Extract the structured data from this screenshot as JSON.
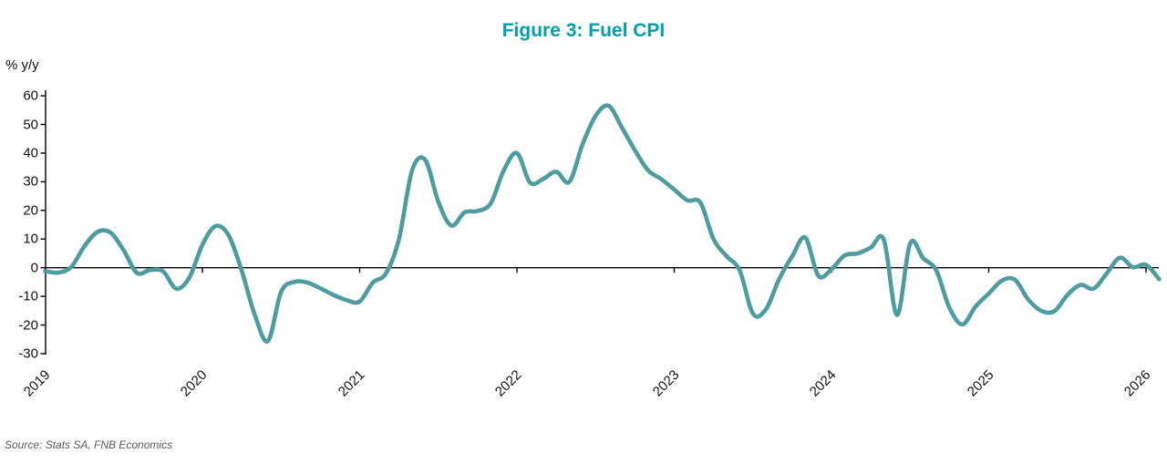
{
  "title": "Figure 3: Fuel CPI",
  "y_axis_unit": "% y/y",
  "source": "Source: Stats SA, FNB Economics",
  "colors": {
    "title": "#00a0ae",
    "line": "#4d9da0",
    "axis": "#000000",
    "tick_label": "#111111",
    "source_text": "#595959"
  },
  "chart_data": {
    "type": "line",
    "title": "Figure 3: Fuel CPI",
    "ylabel": "% y/y",
    "ylim": [
      -30,
      60
    ],
    "y_ticks": [
      60,
      50,
      40,
      30,
      20,
      10,
      0,
      -10,
      -20,
      -30
    ],
    "x_tick_years": [
      "2019",
      "2020",
      "2021",
      "2022",
      "2023",
      "2024",
      "2025",
      "2026"
    ],
    "x_start": "2019-01",
    "x_end": "2026-02",
    "frequency": "monthly",
    "grid": false,
    "legend_position": "none",
    "series": [
      {
        "name": "Fuel CPI % y/y",
        "values": [
          -1.2,
          -1.7,
          0.3,
          7.5,
          12.5,
          12.2,
          6.0,
          -1.8,
          -0.8,
          -1.3,
          -7.3,
          -3.5,
          8.0,
          14.5,
          11.3,
          -1.0,
          -16.5,
          -25.6,
          -8.5,
          -5.0,
          -5.2,
          -7.2,
          -9.5,
          -11.3,
          -11.8,
          -5.2,
          -2.0,
          10.0,
          34.0,
          37.6,
          23.0,
          14.7,
          19.3,
          19.8,
          22.5,
          34.0,
          40.0,
          29.7,
          31.0,
          33.5,
          30.0,
          43.0,
          53.0,
          56.5,
          49.0,
          41.0,
          34.0,
          31.0,
          27.3,
          23.5,
          22.7,
          10.0,
          4.0,
          -1.0,
          -16.0,
          -14.5,
          -4.0,
          4.0,
          10.5,
          -2.8,
          -0.5,
          4.3,
          5.0,
          7.0,
          9.7,
          -16.5,
          8.5,
          3.3,
          -1.0,
          -14.0,
          -19.8,
          -13.5,
          -9.0,
          -4.5,
          -4.2,
          -11.0,
          -15.0,
          -15.2,
          -9.5,
          -6.0,
          -7.3,
          -2.0,
          3.5,
          0.2,
          1.0,
          -4.0
        ]
      }
    ]
  }
}
